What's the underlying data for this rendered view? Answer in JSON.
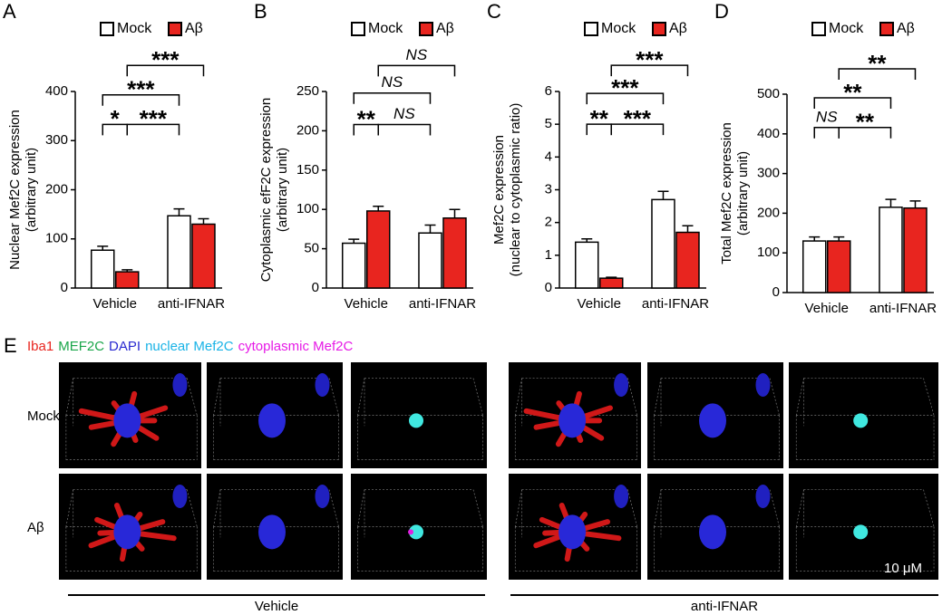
{
  "chart_data": [
    {
      "type": "bar",
      "panel": "A",
      "ylabel": [
        "Nuclear Mef2C expression",
        "(arbitrary unit)"
      ],
      "categories": [
        "Vehicle",
        "anti-IFNAR"
      ],
      "series": [
        {
          "name": "Mock",
          "color": "#ffffff",
          "values": [
            77,
            147
          ],
          "errors": [
            8,
            14
          ]
        },
        {
          "name": "Aβ",
          "color": "#e8251f",
          "values": [
            33,
            130
          ],
          "errors": [
            4,
            11
          ]
        }
      ],
      "ylim": [
        0,
        400
      ],
      "yticks": [
        0,
        100,
        200,
        300,
        400
      ],
      "annotations": [
        {
          "label": "*",
          "from": 0,
          "to": 1,
          "y": 333
        },
        {
          "label": "***",
          "from": 1,
          "to": 2,
          "y": 333
        },
        {
          "label": "***",
          "from": 0,
          "to": 2,
          "y": 393
        },
        {
          "label": "***",
          "from": 1,
          "to": 3,
          "y": 453
        }
      ]
    },
    {
      "type": "bar",
      "panel": "B",
      "ylabel": [
        "Cytoplasmic efF2C expression",
        "(arbitrary unit)"
      ],
      "categories": [
        "Vehicle",
        "anti-IFNAR"
      ],
      "series": [
        {
          "name": "Mock",
          "color": "#ffffff",
          "values": [
            57,
            70
          ],
          "errors": [
            5,
            10
          ]
        },
        {
          "name": "Aβ",
          "color": "#e8251f",
          "values": [
            98,
            89
          ],
          "errors": [
            6,
            11
          ]
        }
      ],
      "ylim": [
        0,
        250
      ],
      "yticks": [
        0,
        50,
        100,
        150,
        200,
        250
      ],
      "annotations": [
        {
          "label": "**",
          "from": 0,
          "to": 1,
          "y": 208
        },
        {
          "label": "NS",
          "from": 1,
          "to": 2,
          "y": 208
        },
        {
          "label": "NS",
          "from": 0,
          "to": 2,
          "y": 248
        },
        {
          "label": "NS",
          "from": 1,
          "to": 3,
          "y": 283
        }
      ]
    },
    {
      "type": "bar",
      "panel": "C",
      "ylabel": [
        "Mef2C expression",
        "(nuclear to cytoplasmic ratio)"
      ],
      "categories": [
        "Vehicle",
        "anti-IFNAR"
      ],
      "series": [
        {
          "name": "Mock",
          "color": "#ffffff",
          "values": [
            1.4,
            2.7
          ],
          "errors": [
            0.1,
            0.25
          ]
        },
        {
          "name": "Aβ",
          "color": "#e8251f",
          "values": [
            0.3,
            1.7
          ],
          "errors": [
            0.03,
            0.2
          ]
        }
      ],
      "ylim": [
        0,
        6
      ],
      "yticks": [
        0,
        1,
        2,
        3,
        4,
        5,
        6
      ],
      "annotations": [
        {
          "label": "**",
          "from": 0,
          "to": 1,
          "y": 5.0
        },
        {
          "label": "***",
          "from": 1,
          "to": 2,
          "y": 5.0
        },
        {
          "label": "***",
          "from": 0,
          "to": 2,
          "y": 5.94
        },
        {
          "label": "***",
          "from": 1,
          "to": 3,
          "y": 6.8
        }
      ]
    },
    {
      "type": "bar",
      "panel": "D",
      "ylabel": [
        "Total Mef2C expression",
        "(arbitrary unit)"
      ],
      "categories": [
        "Vehicle",
        "anti-IFNAR"
      ],
      "series": [
        {
          "name": "Mock",
          "color": "#ffffff",
          "values": [
            130,
            215
          ],
          "errors": [
            10,
            20
          ]
        },
        {
          "name": "Aβ",
          "color": "#e8251f",
          "values": [
            130,
            213
          ],
          "errors": [
            10,
            18
          ]
        }
      ],
      "ylim": [
        0,
        500
      ],
      "yticks": [
        0,
        100,
        200,
        300,
        400,
        500
      ],
      "annotations": [
        {
          "label": "NS",
          "from": 0,
          "to": 1,
          "y": 416
        },
        {
          "label": "**",
          "from": 1,
          "to": 2,
          "y": 416
        },
        {
          "label": "**",
          "from": 0,
          "to": 2,
          "y": 491
        },
        {
          "label": "**",
          "from": 1,
          "to": 3,
          "y": 564
        }
      ]
    }
  ],
  "panel_e": {
    "panel": "E",
    "channels": [
      {
        "name": "Iba1",
        "color": "#e8251f"
      },
      {
        "name": "MEF2C",
        "color": "#1aa64a"
      },
      {
        "name": "DAPI",
        "color": "#2a2ad0"
      },
      {
        "name": "nuclear Mef2C",
        "color": "#1ab3e6"
      },
      {
        "name": "cytoplasmic Mef2C",
        "color": "#e61ae6"
      }
    ],
    "rows": [
      "Mock",
      "Aβ"
    ],
    "groups": [
      "Vehicle",
      "anti-IFNAR"
    ],
    "scale_bar": "10 μM"
  }
}
